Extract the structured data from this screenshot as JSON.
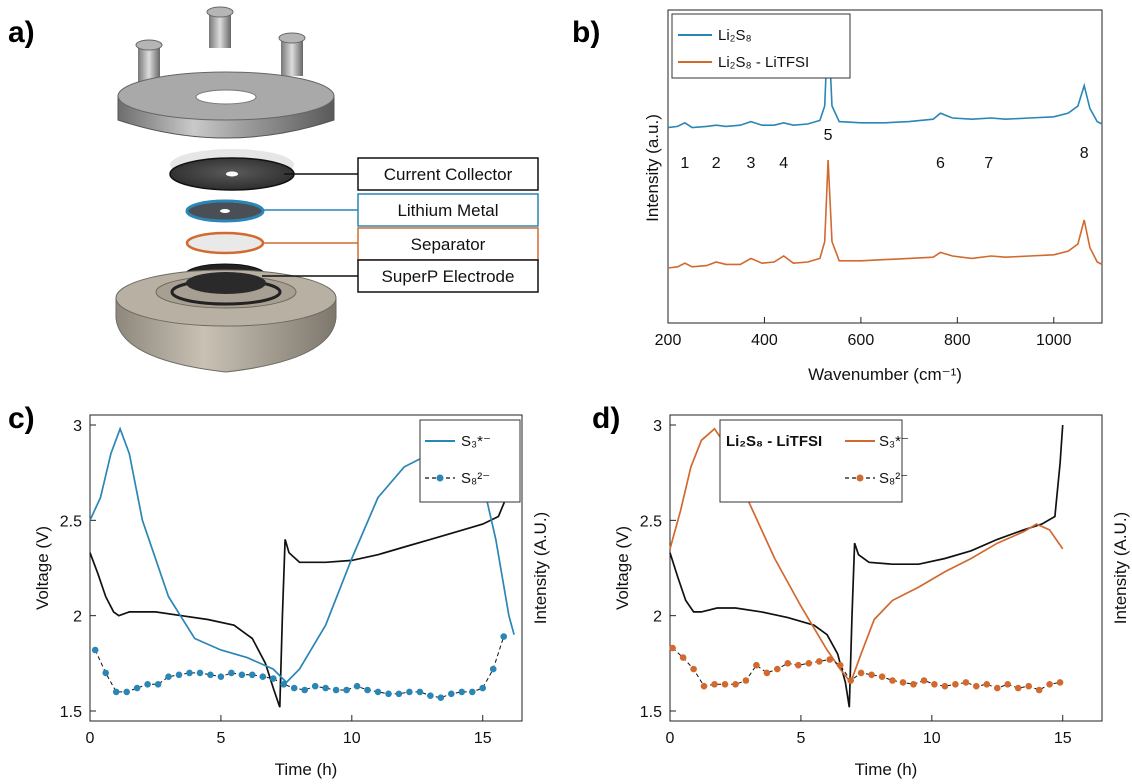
{
  "panels": {
    "a": {
      "letter": "a)",
      "labels": [
        "Current Collector",
        "Lithium Metal",
        "Separator",
        "SuperP Electrode"
      ],
      "label_colors": [
        "#111111",
        "#2a86b5",
        "#d2692e",
        "#111111"
      ]
    },
    "b": {
      "letter": "b)"
    },
    "c": {
      "letter": "c)"
    },
    "d": {
      "letter": "d)"
    }
  },
  "colors": {
    "blue": "#2a86b5",
    "orange": "#d2692e",
    "black": "#111111"
  },
  "chart_data": [
    {
      "id": "b",
      "type": "line",
      "xlabel": "Wavenumber (cm⁻¹)",
      "ylabel": "Intensity (a.u.)",
      "xlim": [
        200,
        1100
      ],
      "xticks": [
        200,
        400,
        600,
        800,
        1000
      ],
      "legend": {
        "placement": "top-left",
        "entries": [
          {
            "text": "Li₂S₈",
            "color": "#2a86b5"
          },
          {
            "text": "Li₂S₈ - LiTFSI",
            "color": "#d2692e"
          }
        ]
      },
      "peak_labels": [
        {
          "text": "1",
          "x": 235
        },
        {
          "text": "2",
          "x": 300
        },
        {
          "text": "3",
          "x": 372
        },
        {
          "text": "4",
          "x": 440
        },
        {
          "text": "5",
          "x": 532
        },
        {
          "text": "6",
          "x": 765
        },
        {
          "text": "7",
          "x": 865
        },
        {
          "text": "8",
          "x": 1063
        }
      ],
      "series": [
        {
          "name": "Li₂S₈",
          "color": "#2a86b5",
          "x": [
            200,
            220,
            235,
            250,
            280,
            300,
            320,
            350,
            372,
            395,
            420,
            440,
            460,
            490,
            515,
            525,
            532,
            540,
            555,
            600,
            650,
            700,
            750,
            765,
            790,
            830,
            870,
            900,
            950,
            1000,
            1030,
            1050,
            1063,
            1075,
            1090,
            1100
          ],
          "y": [
            0.62,
            0.63,
            0.66,
            0.62,
            0.63,
            0.64,
            0.63,
            0.64,
            0.67,
            0.64,
            0.64,
            0.66,
            0.64,
            0.65,
            0.68,
            0.8,
            1.5,
            0.8,
            0.67,
            0.66,
            0.66,
            0.67,
            0.69,
            0.74,
            0.7,
            0.69,
            0.7,
            0.69,
            0.7,
            0.71,
            0.74,
            0.8,
            0.97,
            0.78,
            0.67,
            0.65
          ]
        },
        {
          "name": "Li₂S₈ - LiTFSI",
          "color": "#d2692e",
          "x": [
            200,
            220,
            235,
            250,
            280,
            300,
            320,
            350,
            372,
            395,
            420,
            440,
            460,
            490,
            515,
            525,
            532,
            540,
            555,
            600,
            650,
            700,
            750,
            765,
            790,
            830,
            870,
            900,
            950,
            1000,
            1030,
            1050,
            1063,
            1075,
            1090,
            1100
          ],
          "y": [
            0.0,
            0.01,
            0.04,
            0.01,
            0.02,
            0.05,
            0.03,
            0.03,
            0.08,
            0.04,
            0.05,
            0.1,
            0.04,
            0.05,
            0.08,
            0.22,
            0.9,
            0.22,
            0.06,
            0.06,
            0.07,
            0.08,
            0.09,
            0.13,
            0.1,
            0.08,
            0.1,
            0.09,
            0.1,
            0.11,
            0.14,
            0.2,
            0.4,
            0.17,
            0.05,
            0.03
          ]
        }
      ]
    },
    {
      "id": "c",
      "type": "line",
      "xlabel": "Time (h)",
      "ylabel": "Voltage (V)",
      "ylabel_right": "Intensity (A.U.)",
      "xlim": [
        0,
        16.5
      ],
      "ylim": [
        1.5,
        3.0
      ],
      "xticks": [
        0,
        5,
        10,
        15
      ],
      "yticks": [
        1.5,
        2,
        2.5,
        3
      ],
      "legend": {
        "placement": "top-right",
        "entries": [
          {
            "text": "S₃*⁻",
            "color": "#2a86b5",
            "marker": false
          },
          {
            "text": "S₈²⁻",
            "color": "#2a86b5",
            "marker": true
          }
        ]
      },
      "series": [
        {
          "name": "Voltage",
          "color": "#111111",
          "x": [
            0,
            0.3,
            0.6,
            0.9,
            1.1,
            1.5,
            2.5,
            3.5,
            4.5,
            5.5,
            6.2,
            6.7,
            7.0,
            7.25,
            7.35,
            7.45,
            7.6,
            8.0,
            9,
            10,
            11,
            12,
            13,
            14,
            15,
            15.6,
            15.9,
            16.1,
            16.2
          ],
          "y": [
            2.33,
            2.22,
            2.1,
            2.02,
            2.0,
            2.02,
            2.02,
            2.0,
            1.98,
            1.95,
            1.88,
            1.75,
            1.62,
            1.52,
            2.0,
            2.4,
            2.33,
            2.28,
            2.28,
            2.29,
            2.32,
            2.36,
            2.4,
            2.44,
            2.48,
            2.52,
            2.62,
            2.8,
            3.0
          ]
        },
        {
          "name": "S₃*⁻",
          "color": "#2a86b5",
          "x": [
            0,
            0.4,
            0.8,
            1.15,
            1.5,
            2.0,
            3.0,
            4.0,
            5.0,
            6.0,
            7.0,
            7.5,
            8.0,
            9.0,
            10.0,
            11.0,
            12.0,
            13.0,
            14.0,
            14.5,
            15.0,
            15.5,
            16.0,
            16.2
          ],
          "y": [
            2.5,
            2.62,
            2.85,
            2.98,
            2.85,
            2.5,
            2.1,
            1.88,
            1.82,
            1.78,
            1.72,
            1.65,
            1.72,
            1.95,
            2.3,
            2.62,
            2.78,
            2.85,
            2.82,
            2.8,
            2.7,
            2.4,
            2.0,
            1.9
          ]
        },
        {
          "name": "S₈²⁻",
          "color": "#2a86b5",
          "marker": true,
          "x": [
            0.2,
            0.6,
            1.0,
            1.4,
            1.8,
            2.2,
            2.6,
            3.0,
            3.4,
            3.8,
            4.2,
            4.6,
            5.0,
            5.4,
            5.8,
            6.2,
            6.6,
            7.0,
            7.4,
            7.8,
            8.2,
            8.6,
            9.0,
            9.4,
            9.8,
            10.2,
            10.6,
            11.0,
            11.4,
            11.8,
            12.2,
            12.6,
            13.0,
            13.4,
            13.8,
            14.2,
            14.6,
            15.0,
            15.4,
            15.8
          ],
          "y": [
            1.82,
            1.7,
            1.6,
            1.6,
            1.62,
            1.64,
            1.64,
            1.68,
            1.69,
            1.7,
            1.7,
            1.69,
            1.68,
            1.7,
            1.69,
            1.69,
            1.68,
            1.67,
            1.64,
            1.62,
            1.61,
            1.63,
            1.62,
            1.61,
            1.61,
            1.63,
            1.61,
            1.6,
            1.59,
            1.59,
            1.6,
            1.6,
            1.58,
            1.57,
            1.59,
            1.6,
            1.6,
            1.62,
            1.72,
            1.89
          ]
        }
      ]
    },
    {
      "id": "d",
      "type": "line",
      "title": "Li₂S₈ - LiTFSI",
      "xlabel": "Time (h)",
      "ylabel": "Voltage (V)",
      "ylabel_right": "Intensity (A.U.)",
      "xlim": [
        0,
        16.5
      ],
      "ylim": [
        1.5,
        3.0
      ],
      "xticks": [
        0,
        5,
        10,
        15
      ],
      "yticks": [
        1.5,
        2,
        2.5,
        3
      ],
      "legend": {
        "placement": "top-center",
        "entries": [
          {
            "text": "S₃*⁻",
            "color": "#d2692e",
            "marker": false
          },
          {
            "text": "S₈²⁻",
            "color": "#d2692e",
            "marker": true
          }
        ]
      },
      "series": [
        {
          "name": "Voltage",
          "color": "#111111",
          "x": [
            0,
            0.3,
            0.6,
            0.9,
            1.2,
            1.8,
            2.5,
            3.5,
            4.5,
            5.5,
            6.0,
            6.4,
            6.7,
            6.85,
            6.95,
            7.05,
            7.2,
            7.6,
            8.5,
            9.5,
            10.5,
            11.5,
            12.5,
            13.5,
            14.2,
            14.7,
            14.9,
            15.0
          ],
          "y": [
            2.33,
            2.2,
            2.08,
            2.02,
            2.02,
            2.04,
            2.04,
            2.02,
            1.99,
            1.95,
            1.9,
            1.8,
            1.65,
            1.52,
            2.0,
            2.38,
            2.32,
            2.28,
            2.27,
            2.27,
            2.3,
            2.34,
            2.4,
            2.45,
            2.48,
            2.52,
            2.8,
            3.0
          ]
        },
        {
          "name": "S₃*⁻",
          "color": "#d2692e",
          "x": [
            0,
            0.4,
            0.8,
            1.2,
            1.7,
            2.2,
            3.0,
            4.0,
            5.0,
            6.0,
            6.5,
            6.9,
            7.3,
            7.8,
            8.5,
            9.5,
            10.5,
            11.5,
            12.5,
            13.5,
            14.0,
            14.5,
            15.0
          ],
          "y": [
            2.35,
            2.55,
            2.78,
            2.92,
            2.98,
            2.88,
            2.6,
            2.3,
            2.05,
            1.82,
            1.72,
            1.65,
            1.8,
            1.98,
            2.08,
            2.15,
            2.23,
            2.3,
            2.38,
            2.44,
            2.48,
            2.45,
            2.35
          ]
        },
        {
          "name": "S₈²⁻",
          "color": "#d2692e",
          "marker": true,
          "x": [
            0.1,
            0.5,
            0.9,
            1.3,
            1.7,
            2.1,
            2.5,
            2.9,
            3.3,
            3.7,
            4.1,
            4.5,
            4.9,
            5.3,
            5.7,
            6.1,
            6.5,
            6.9,
            7.3,
            7.7,
            8.1,
            8.5,
            8.9,
            9.3,
            9.7,
            10.1,
            10.5,
            10.9,
            11.3,
            11.7,
            12.1,
            12.5,
            12.9,
            13.3,
            13.7,
            14.1,
            14.5,
            14.9
          ],
          "y": [
            1.83,
            1.78,
            1.72,
            1.63,
            1.64,
            1.64,
            1.64,
            1.66,
            1.74,
            1.7,
            1.72,
            1.75,
            1.74,
            1.75,
            1.76,
            1.77,
            1.74,
            1.66,
            1.7,
            1.69,
            1.68,
            1.66,
            1.65,
            1.64,
            1.66,
            1.64,
            1.63,
            1.64,
            1.65,
            1.63,
            1.64,
            1.62,
            1.64,
            1.62,
            1.63,
            1.61,
            1.64,
            1.65
          ]
        }
      ]
    }
  ]
}
